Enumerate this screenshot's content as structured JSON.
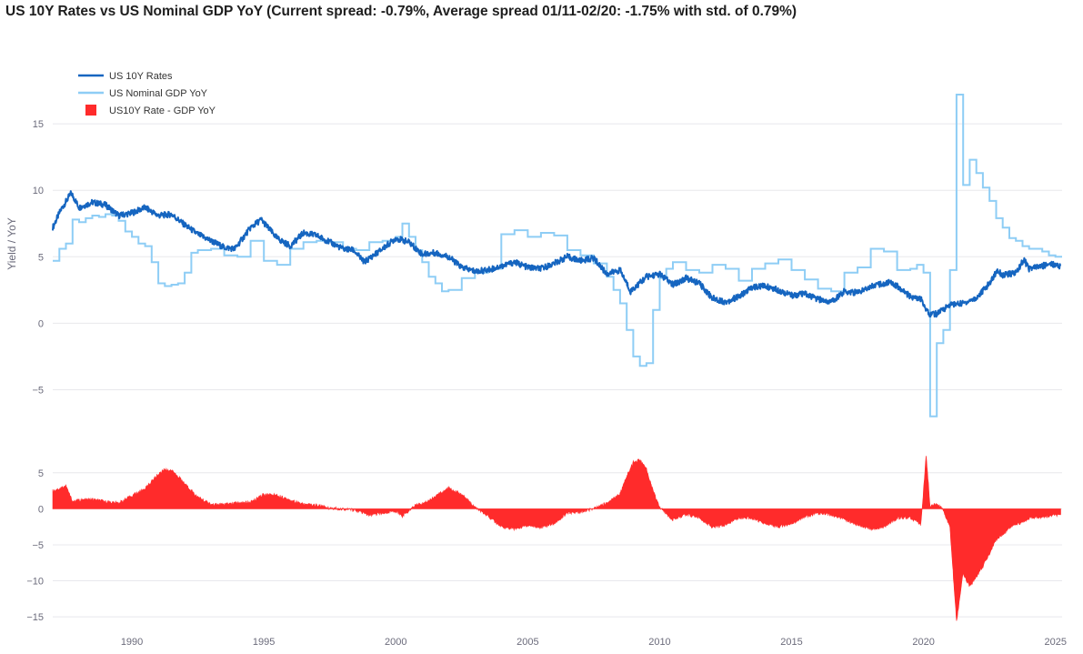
{
  "title": "US 10Y Rates vs US Nominal GDP YoY (Current spread: -0.79%, Average spread 01/11-02/20: -1.75% with std. of 0.79%)",
  "chart_data": {
    "type": "line",
    "title": "US 10Y Rates vs US Nominal GDP YoY (Current spread: -0.79%, Average spread 01/11-02/20: -1.75% with std. of 0.79%)",
    "xlabel": "",
    "ylabel": "Yield / YoY",
    "xlim": [
      1987.0,
      2025.25
    ],
    "x_ticks": [
      1990,
      1995,
      2000,
      2005,
      2010,
      2015,
      2020,
      2025
    ],
    "x_tick_labels": [
      "1990",
      "1995",
      "2000",
      "2005",
      "2010",
      "2015",
      "2020",
      "2025"
    ],
    "top_panel": {
      "ylim": [
        -7.5,
        18.5
      ],
      "y_ticks": [
        -5,
        0,
        5,
        10,
        15
      ],
      "y_tick_labels": [
        "−5",
        "0",
        "5",
        "10",
        "15"
      ]
    },
    "bottom_panel": {
      "ylim": [
        -16.5,
        7.5
      ],
      "y_ticks": [
        -15,
        -10,
        -5,
        0,
        5
      ],
      "y_tick_labels": [
        "−15",
        "−10",
        "−5",
        "0",
        "5"
      ]
    },
    "legend": {
      "placement": "top-left",
      "entries": [
        "US 10Y Rates",
        "US Nominal GDP YoY",
        "US10Y Rate - GDP YoY"
      ]
    },
    "series": [
      {
        "name": "US 10Y Rates",
        "color": "#1565c0",
        "panel": "top",
        "style": "line",
        "x": [
          1987.0,
          1987.3,
          1987.7,
          1988.0,
          1988.5,
          1989.0,
          1989.5,
          1990.0,
          1990.5,
          1991.0,
          1991.5,
          1992.0,
          1992.5,
          1993.0,
          1993.5,
          1993.9,
          1994.5,
          1994.9,
          1995.5,
          1996.0,
          1996.5,
          1997.0,
          1997.5,
          1998.0,
          1998.4,
          1998.8,
          1999.5,
          2000.0,
          2000.5,
          2001.0,
          2001.5,
          2002.0,
          2002.5,
          2003.0,
          2003.5,
          2004.0,
          2004.5,
          2005.0,
          2005.5,
          2006.0,
          2006.5,
          2007.0,
          2007.5,
          2008.0,
          2008.5,
          2008.9,
          2009.5,
          2010.0,
          2010.5,
          2011.0,
          2011.5,
          2012.0,
          2012.5,
          2013.0,
          2013.5,
          2014.0,
          2014.5,
          2015.0,
          2015.5,
          2016.0,
          2016.5,
          2017.0,
          2017.5,
          2018.0,
          2018.8,
          2019.5,
          2019.9,
          2020.2,
          2020.5,
          2021.0,
          2021.5,
          2022.0,
          2022.5,
          2022.8,
          2023.0,
          2023.5,
          2023.8,
          2024.0,
          2024.5,
          2024.8,
          2025.2
        ],
        "y": [
          7.2,
          8.5,
          9.8,
          8.7,
          9.1,
          8.9,
          8.1,
          8.3,
          8.7,
          8.1,
          8.2,
          7.4,
          6.7,
          6.2,
          5.7,
          5.6,
          7.2,
          7.8,
          6.4,
          5.8,
          6.8,
          6.6,
          6.1,
          5.6,
          5.5,
          4.6,
          5.6,
          6.4,
          6.1,
          5.2,
          5.3,
          5.0,
          4.2,
          3.9,
          4.0,
          4.3,
          4.6,
          4.2,
          4.1,
          4.5,
          5.0,
          4.7,
          4.9,
          3.7,
          4.0,
          2.4,
          3.5,
          3.7,
          2.9,
          3.4,
          3.0,
          1.9,
          1.6,
          2.0,
          2.7,
          2.8,
          2.5,
          2.1,
          2.2,
          1.8,
          1.6,
          2.4,
          2.3,
          2.8,
          3.1,
          2.0,
          1.8,
          0.7,
          0.7,
          1.4,
          1.5,
          1.9,
          3.0,
          4.0,
          3.6,
          3.8,
          4.8,
          4.1,
          4.3,
          4.5,
          4.3
        ]
      },
      {
        "name": "US Nominal GDP YoY",
        "color": "#8ecdf5",
        "panel": "top",
        "style": "step",
        "x": [
          1987.0,
          1987.25,
          1987.5,
          1987.75,
          1988.0,
          1988.25,
          1988.5,
          1988.75,
          1989.0,
          1989.25,
          1989.5,
          1989.75,
          1990.0,
          1990.25,
          1990.5,
          1990.75,
          1991.0,
          1991.25,
          1991.5,
          1991.75,
          1992.0,
          1992.25,
          1992.5,
          1993.0,
          1993.5,
          1994.0,
          1994.5,
          1995.0,
          1995.5,
          1996.0,
          1996.5,
          1997.0,
          1997.5,
          1998.0,
          1998.5,
          1999.0,
          1999.5,
          2000.0,
          2000.25,
          2000.5,
          2000.75,
          2001.0,
          2001.25,
          2001.5,
          2001.75,
          2002.0,
          2002.5,
          2003.0,
          2003.5,
          2004.0,
          2004.5,
          2005.0,
          2005.5,
          2006.0,
          2006.5,
          2007.0,
          2007.5,
          2008.0,
          2008.25,
          2008.5,
          2008.75,
          2009.0,
          2009.25,
          2009.5,
          2009.75,
          2010.0,
          2010.25,
          2010.5,
          2011.0,
          2011.5,
          2012.0,
          2012.5,
          2013.0,
          2013.5,
          2014.0,
          2014.5,
          2015.0,
          2015.5,
          2016.0,
          2016.5,
          2017.0,
          2017.5,
          2018.0,
          2018.5,
          2019.0,
          2019.5,
          2019.75,
          2020.0,
          2020.25,
          2020.5,
          2020.75,
          2021.0,
          2021.25,
          2021.5,
          2021.75,
          2022.0,
          2022.25,
          2022.5,
          2022.75,
          2023.0,
          2023.25,
          2023.5,
          2023.75,
          2024.0,
          2024.5,
          2024.75,
          2025.0
        ],
        "y": [
          4.7,
          5.6,
          6.0,
          7.8,
          7.6,
          7.9,
          8.1,
          8.0,
          8.2,
          8.1,
          7.7,
          6.9,
          6.5,
          6.0,
          5.8,
          4.6,
          3.0,
          2.8,
          2.9,
          3.0,
          3.8,
          5.3,
          5.5,
          5.6,
          5.1,
          5.0,
          6.2,
          4.7,
          4.4,
          5.6,
          6.1,
          6.2,
          6.1,
          5.6,
          5.5,
          6.1,
          6.2,
          6.5,
          7.5,
          6.5,
          5.5,
          4.6,
          3.5,
          3.0,
          2.4,
          2.5,
          3.4,
          3.8,
          4.1,
          6.7,
          7.0,
          6.5,
          6.8,
          6.6,
          5.5,
          5.1,
          4.5,
          3.5,
          2.5,
          1.5,
          -0.5,
          -2.5,
          -3.2,
          -3.0,
          1.0,
          3.4,
          4.1,
          4.6,
          4.0,
          3.8,
          4.4,
          4.1,
          3.2,
          4.1,
          4.5,
          4.8,
          4.0,
          3.3,
          2.6,
          2.4,
          3.8,
          4.2,
          5.6,
          5.4,
          4.0,
          4.1,
          4.4,
          3.8,
          -7.0,
          -1.5,
          -0.5,
          4.0,
          17.2,
          10.4,
          12.3,
          11.3,
          10.2,
          9.2,
          7.9,
          7.2,
          6.4,
          6.2,
          5.8,
          5.6,
          5.4,
          5.1,
          5.0
        ]
      },
      {
        "name": "US10Y Rate - GDP YoY",
        "color": "#ff2b2b",
        "panel": "bottom",
        "style": "area",
        "x": [
          1987.0,
          1987.25,
          1987.5,
          1987.75,
          1988.0,
          1988.5,
          1989.0,
          1989.5,
          1990.0,
          1990.5,
          1991.0,
          1991.25,
          1991.5,
          1991.75,
          1992.0,
          1992.5,
          1993.0,
          1993.5,
          1994.0,
          1994.5,
          1995.0,
          1995.5,
          1996.0,
          1996.5,
          1997.0,
          1997.5,
          1998.0,
          1998.5,
          1999.0,
          1999.5,
          2000.0,
          2000.25,
          2000.75,
          2001.0,
          2001.5,
          2002.0,
          2002.5,
          2003.0,
          2003.5,
          2004.0,
          2004.5,
          2005.0,
          2005.5,
          2006.0,
          2006.5,
          2007.0,
          2007.5,
          2008.0,
          2008.5,
          2008.75,
          2009.0,
          2009.25,
          2009.5,
          2009.75,
          2010.0,
          2010.5,
          2011.0,
          2011.5,
          2012.0,
          2012.5,
          2013.0,
          2013.5,
          2014.0,
          2014.5,
          2015.0,
          2015.5,
          2016.0,
          2016.5,
          2017.0,
          2017.5,
          2018.0,
          2018.5,
          2019.0,
          2019.5,
          2019.9,
          2020.1,
          2020.25,
          2020.5,
          2020.75,
          2021.0,
          2021.25,
          2021.5,
          2021.75,
          2022.0,
          2022.25,
          2022.5,
          2022.75,
          2023.0,
          2023.25,
          2023.5,
          2024.0,
          2024.5,
          2025.0,
          2025.2
        ],
        "y": [
          2.5,
          2.8,
          3.2,
          1.0,
          1.2,
          1.3,
          1.0,
          0.8,
          1.8,
          2.8,
          4.8,
          5.5,
          5.3,
          4.5,
          3.5,
          1.6,
          0.6,
          0.6,
          0.8,
          0.9,
          2.0,
          1.9,
          1.2,
          0.6,
          0.5,
          0.1,
          0.0,
          -0.2,
          -0.9,
          -0.6,
          -0.3,
          -1.0,
          0.5,
          0.7,
          1.7,
          2.9,
          2.0,
          0.2,
          -1.0,
          -2.5,
          -2.8,
          -2.3,
          -2.6,
          -2.0,
          -0.6,
          -0.4,
          0.0,
          0.8,
          2.1,
          4.5,
          6.5,
          6.8,
          5.5,
          2.5,
          0.2,
          -1.5,
          -0.8,
          -1.2,
          -2.6,
          -2.2,
          -1.2,
          -1.3,
          -2.0,
          -2.5,
          -2.0,
          -1.1,
          -0.6,
          -0.8,
          -1.5,
          -2.2,
          -2.8,
          -2.5,
          -1.3,
          -1.2,
          -2.2,
          7.5,
          0.3,
          0.7,
          -0.2,
          -2.6,
          -15.7,
          -9.0,
          -10.8,
          -9.4,
          -8.0,
          -6.2,
          -4.3,
          -3.6,
          -2.6,
          -2.3,
          -1.3,
          -1.1,
          -0.9,
          -0.8
        ]
      }
    ]
  }
}
